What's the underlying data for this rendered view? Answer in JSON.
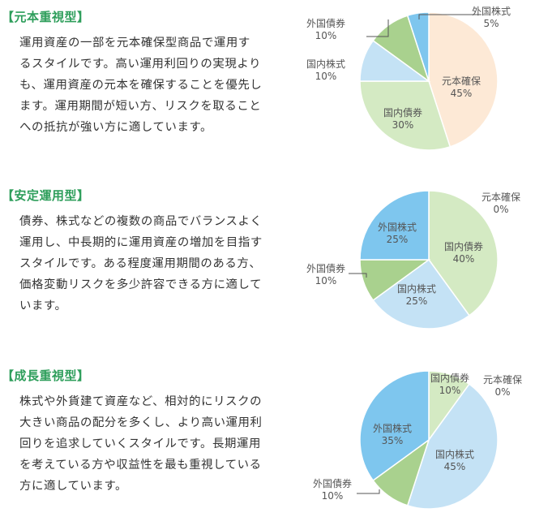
{
  "colors": {
    "heading": "#2e9e5b",
    "text": "#333333",
    "label": "#555555",
    "slice_stroke": "#ffffff",
    "leader_line": "#555555"
  },
  "sections": [
    {
      "heading": "【元本重視型】",
      "description_lines": [
        "運用資産の一部を元本確保型商品で運用す",
        "るスタイルです。高い運用利回りの実現より",
        "も、運用資産の元本を確保することを優先し",
        "ます。運用期間が短い方、リスクを取ること",
        "への抵抗が強い方に適しています。"
      ]
    },
    {
      "heading": "【安定運用型】",
      "description_lines": [
        "債券、株式などの複数の商品でバランスよく",
        "運用し、中長期的に運用資産の増加を目指す",
        "スタイルです。ある程度運用期間のある方、",
        "価格変動リスクを多少許容できる方に適して",
        "います。"
      ]
    },
    {
      "heading": "【成長重視型】",
      "description_lines": [
        "株式や外貨建て資産など、相対的にリスクの",
        "大きい商品の配分を多くし、より高い運用利",
        "回りを追求していくスタイルです。長期運用",
        "を考えている方や収益性を最も重視している",
        "方に適しています。"
      ]
    }
  ],
  "chart_data": [
    {
      "type": "pie",
      "title": "",
      "slices": [
        {
          "name": "元本確保",
          "value": 45,
          "label": "45%",
          "color": "#fde9d6"
        },
        {
          "name": "国内債券",
          "value": 30,
          "label": "30%",
          "color": "#d4eac3"
        },
        {
          "name": "国内株式",
          "value": 10,
          "label": "10%",
          "color": "#c4e2f5"
        },
        {
          "name": "外国債券",
          "value": 10,
          "label": "10%",
          "color": "#a9d18e"
        },
        {
          "name": "外国株式",
          "value": 5,
          "label": "5%",
          "color": "#7ec6ee"
        }
      ]
    },
    {
      "type": "pie",
      "title": "",
      "slices": [
        {
          "name": "元本確保",
          "value": 0,
          "label": "0%",
          "color": "#fde9d6"
        },
        {
          "name": "国内債券",
          "value": 40,
          "label": "40%",
          "color": "#d4eac3"
        },
        {
          "name": "国内株式",
          "value": 25,
          "label": "25%",
          "color": "#c4e2f5"
        },
        {
          "name": "外国債券",
          "value": 10,
          "label": "10%",
          "color": "#a9d18e"
        },
        {
          "name": "外国株式",
          "value": 25,
          "label": "25%",
          "color": "#7ec6ee"
        }
      ]
    },
    {
      "type": "pie",
      "title": "",
      "slices": [
        {
          "name": "元本確保",
          "value": 0,
          "label": "0%",
          "color": "#fde9d6"
        },
        {
          "name": "国内債券",
          "value": 10,
          "label": "10%",
          "color": "#d4eac3"
        },
        {
          "name": "国内株式",
          "value": 45,
          "label": "45%",
          "color": "#c4e2f5"
        },
        {
          "name": "外国債券",
          "value": 10,
          "label": "10%",
          "color": "#a9d18e"
        },
        {
          "name": "外国株式",
          "value": 35,
          "label": "35%",
          "color": "#7ec6ee"
        }
      ]
    }
  ]
}
